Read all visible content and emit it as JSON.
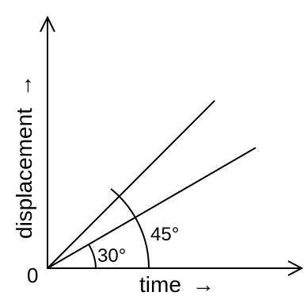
{
  "chart_data": {
    "type": "line",
    "xlabel": "time",
    "ylabel": "displacement",
    "origin_label": "0",
    "axis_arrow": "→",
    "grid": false,
    "series": [
      {
        "angle_deg": 45,
        "x": [
          0,
          1
        ],
        "y": [
          0,
          1
        ],
        "angle_label": "45°"
      },
      {
        "angle_deg": 30,
        "x": [
          0,
          1
        ],
        "y": [
          0,
          0.577
        ],
        "angle_label": "30°"
      }
    ]
  }
}
